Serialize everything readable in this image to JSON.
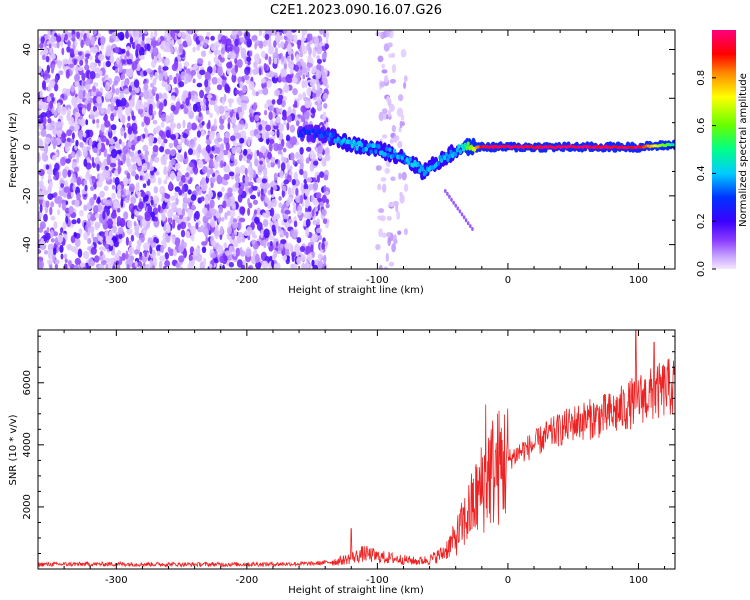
{
  "title": "C2E1.2023.090.16.07.G26",
  "chart_data": [
    {
      "type": "heatmap",
      "xlabel": "Height of straight line (km)",
      "ylabel": "Frequency (Hz)",
      "xlim": [
        -360,
        128
      ],
      "ylim": [
        -50,
        48
      ],
      "x_ticks": [
        -300,
        -200,
        -100,
        0,
        100
      ],
      "y_ticks": [
        -40,
        -20,
        0,
        20,
        40
      ],
      "colorbar": {
        "label": "Normalized spectral amplitude",
        "range": [
          0.0,
          1.0
        ],
        "ticks": [
          0.0,
          0.2,
          0.4,
          0.6,
          0.8
        ],
        "tick_labels": [
          "0.0",
          "0.2",
          "0.4",
          "0.6",
          "0.8"
        ],
        "colormap": [
          "#f4e6ff",
          "#c9a8ff",
          "#8a3cff",
          "#3a00ff",
          "#0033ff",
          "#00ccff",
          "#00ff88",
          "#66ff00",
          "#ffff00",
          "#ff8800",
          "#ff0000",
          "#ff0080"
        ]
      },
      "regions": [
        {
          "x_range": [
            -360,
            -138
          ],
          "freq_range": [
            -50,
            48
          ],
          "amplitude": [
            0.02,
            0.2
          ],
          "description": "noise"
        },
        {
          "x_range": [
            -100,
            -78
          ],
          "freq_range": [
            -50,
            48
          ],
          "amplitude": [
            0.02,
            0.08
          ],
          "description": "sparse noise"
        }
      ],
      "signal_track": [
        {
          "x": -160,
          "freq": 6,
          "amplitude": 0.3
        },
        {
          "x": -140,
          "freq": 5,
          "amplitude": 0.35
        },
        {
          "x": -120,
          "freq": 1,
          "amplitude": 0.45
        },
        {
          "x": -100,
          "freq": -1,
          "amplitude": 0.4
        },
        {
          "x": -80,
          "freq": -4,
          "amplitude": 0.4
        },
        {
          "x": -65,
          "freq": -10,
          "amplitude": 0.45
        },
        {
          "x": -50,
          "freq": -5,
          "amplitude": 0.4
        },
        {
          "x": -35,
          "freq": 0,
          "amplitude": 0.45
        },
        {
          "x": -20,
          "freq": 0,
          "amplitude": 0.95
        },
        {
          "x": 0,
          "freq": 0,
          "amplitude": 1.0
        },
        {
          "x": 50,
          "freq": 0,
          "amplitude": 1.0
        },
        {
          "x": 100,
          "freq": 0,
          "amplitude": 0.98
        },
        {
          "x": 128,
          "freq": 1,
          "amplitude": 0.5
        }
      ]
    },
    {
      "type": "line",
      "xlabel": "Height of straight line (km)",
      "ylabel": "SNR (10 * v/v)",
      "xlim": [
        -360,
        128
      ],
      "ylim": [
        0,
        7700
      ],
      "x_ticks": [
        -300,
        -200,
        -100,
        0,
        100
      ],
      "y_ticks": [
        2000,
        4000,
        6000
      ],
      "grid": false,
      "color": "#ee2222",
      "series": [
        {
          "x": [
            -360,
            -300,
            -250,
            -200,
            -150,
            -130,
            -120,
            -110,
            -100,
            -90,
            -80,
            -70,
            -60,
            -50,
            -40,
            -30,
            -20,
            -15,
            -10,
            0,
            10,
            20,
            30,
            40,
            50,
            60,
            70,
            80,
            90,
            100,
            110,
            120,
            128
          ],
          "values": [
            150,
            160,
            150,
            150,
            170,
            250,
            350,
            500,
            400,
            350,
            300,
            250,
            300,
            500,
            1000,
            1800,
            2600,
            3100,
            3200,
            3500,
            3800,
            4000,
            4300,
            4500,
            4700,
            4800,
            4900,
            5000,
            5200,
            5500,
            5600,
            5800,
            5900
          ],
          "peaks": [
            {
              "x": -17,
              "value": 5300
            },
            {
              "x": -120,
              "value": 1300
            },
            {
              "x": 98,
              "value": 7700
            },
            {
              "x": 112,
              "value": 7300
            }
          ]
        }
      ]
    }
  ]
}
